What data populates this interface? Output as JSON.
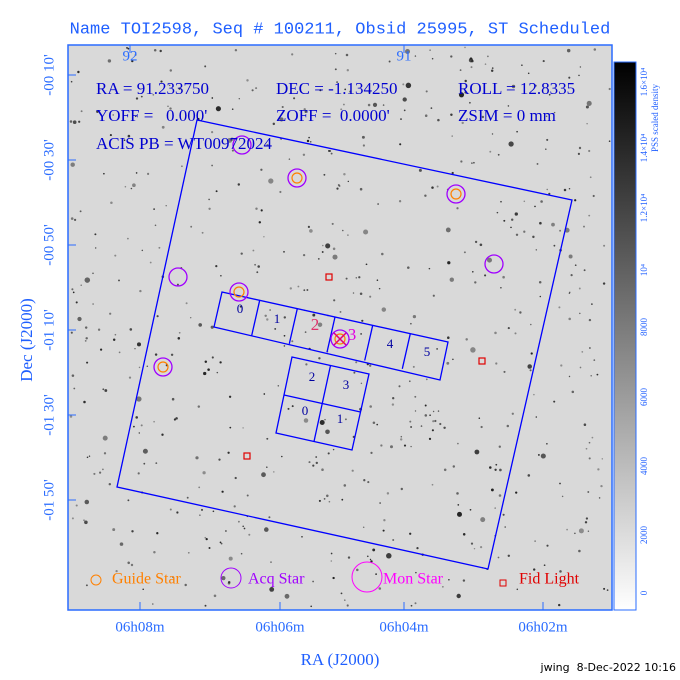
{
  "header": {
    "title": "Name TOI2598, Seq # 100211, Obsid 25995, ST Scheduled"
  },
  "axes": {
    "x_label": "RA (J2000)",
    "y_label": "Dec (J2000)",
    "bottom_ticks": [
      "06h08m",
      "06h06m",
      "06h04m",
      "06h02m"
    ],
    "top_ticks": [
      "92",
      "91"
    ],
    "left_ticks": [
      "-00 10'",
      "-00 30'",
      "-00 50'",
      "-01 10'",
      "-01 30'",
      "-01 50'"
    ]
  },
  "info": {
    "ra": "RA = 91.233750",
    "dec": "DEC = -1.134250",
    "roll": "ROLL = 12.8335",
    "yoff": "YOFF =   0.000'",
    "zoff": "ZOFF =  0.0000'",
    "zsim": "ZSIM = 0 mm",
    "acis": "ACIS PB = WT00972024"
  },
  "acis_s_chips": [
    "0",
    "1",
    "2",
    "3",
    "4",
    "5"
  ],
  "acis_i_chips": [
    "2",
    "3",
    "0",
    "1"
  ],
  "legend": {
    "guide": "Guide Star",
    "acq": "Acq Star",
    "mon": "Mon Star",
    "fid": "Fid Light"
  },
  "colorbar": {
    "label": "PSS scaled density",
    "ticks": [
      "0",
      "2000",
      "4000",
      "6000",
      "8000",
      "10⁴",
      "1.2×10⁴",
      "1.4×10⁴",
      "1.6×10⁴"
    ]
  },
  "footer": "jwing  8-Dec-2022 10:16"
}
